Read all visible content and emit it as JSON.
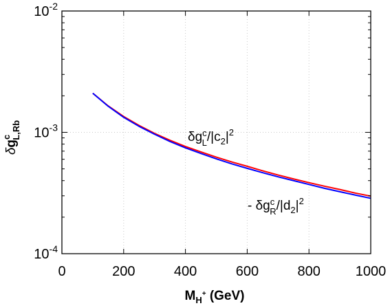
{
  "chart_data": {
    "type": "line",
    "x_ticks": [
      "0",
      "200",
      "400",
      "600",
      "800",
      "1000"
    ],
    "y_ticks": [
      {
        "base": "10",
        "exp": "-2"
      },
      {
        "base": "10",
        "exp": "-3"
      },
      {
        "base": "10",
        "exp": "-4"
      }
    ],
    "xlim": [
      0,
      1000
    ],
    "ylim": [
      0.0001,
      0.01
    ],
    "y_scale": "log",
    "grid": true,
    "xlabel": {
      "main": "M",
      "sub": "H",
      "sup": "+",
      "unit": " (GeV)"
    },
    "ylabel": {
      "delta": "δ",
      "main": "g",
      "sup": "c",
      "sub": "L,Rb"
    },
    "annotations": [
      {
        "prefix": "δg",
        "sup": "c",
        "sub": "L",
        "mid": "/|c",
        "sub2": "2",
        "end": "|",
        "exp": "2"
      },
      {
        "prefix": "- δg",
        "sup": "c",
        "sub": "R",
        "mid": "/|d",
        "sub2": "2",
        "end": "|",
        "exp": "2"
      }
    ],
    "series": [
      {
        "color": "#ff0000",
        "x": [
          100,
          150,
          200,
          250,
          300,
          350,
          400,
          450,
          500,
          550,
          600,
          650,
          700,
          750,
          800,
          850,
          900,
          950,
          1000
        ],
        "y": [
          0.0021,
          0.00165,
          0.00135,
          0.00114,
          0.00098,
          0.00086,
          0.000765,
          0.00069,
          0.000625,
          0.00057,
          0.000525,
          0.000482,
          0.000445,
          0.000413,
          0.000385,
          0.00036,
          0.000338,
          0.000316,
          0.000298
        ]
      },
      {
        "color": "#0000ff",
        "x": [
          100,
          150,
          200,
          250,
          300,
          350,
          400,
          450,
          500,
          550,
          600,
          650,
          700,
          750,
          800,
          850,
          900,
          950,
          1000
        ],
        "y": [
          0.0021,
          0.00164,
          0.00133,
          0.00112,
          0.000965,
          0.00084,
          0.000745,
          0.00067,
          0.000605,
          0.00055,
          0.000505,
          0.000465,
          0.00043,
          0.0004,
          0.000372,
          0.000346,
          0.000324,
          0.000304,
          0.000286
        ]
      }
    ]
  }
}
